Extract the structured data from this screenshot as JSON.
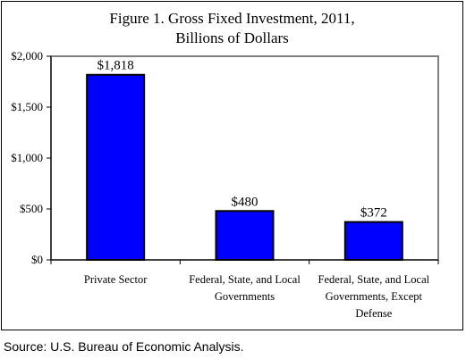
{
  "chart_data": {
    "type": "bar",
    "title_lines": [
      "Figure 1. Gross Fixed Investment, 2011,",
      "Billions of Dollars"
    ],
    "categories": [
      [
        "Private Sector"
      ],
      [
        "Federal, State, and Local",
        "Governments"
      ],
      [
        "Federal, State, and Local",
        "Governments, Except",
        "Defense"
      ]
    ],
    "values": [
      1818,
      480,
      372
    ],
    "data_labels": [
      "$1,818",
      "$480",
      "$372"
    ],
    "ylim": [
      0,
      2000
    ],
    "yticks": [
      0,
      500,
      1000,
      1500,
      2000
    ],
    "ytick_labels": [
      "$0",
      "$500",
      "$1,000",
      "$1,500",
      "$2,000"
    ],
    "xlabel": "",
    "ylabel": "",
    "grid": false,
    "colors": {
      "bar": "#0000ff",
      "bar_stroke": "#000000",
      "plot_border": "#808080"
    }
  },
  "source": "Source: U.S. Bureau of Economic Analysis."
}
